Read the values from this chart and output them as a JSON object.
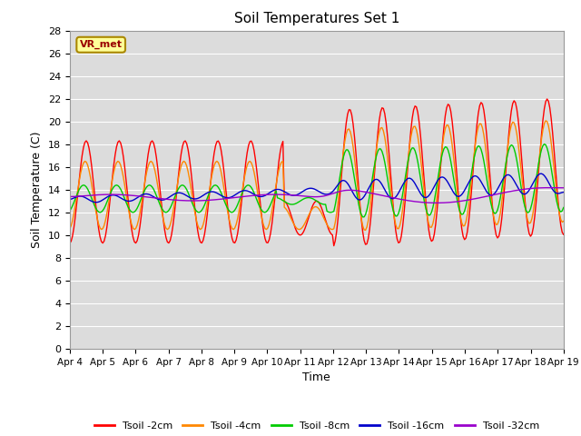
{
  "title": "Soil Temperatures Set 1",
  "xlabel": "Time",
  "ylabel": "Soil Temperature (C)",
  "x_tick_labels": [
    "Apr 4",
    "Apr 5",
    "Apr 6",
    "Apr 7",
    "Apr 8",
    "Apr 9",
    "Apr 10",
    "Apr 11",
    "Apr 12",
    "Apr 13",
    "Apr 14",
    "Apr 15",
    "Apr 16",
    "Apr 17",
    "Apr 18",
    "Apr 19"
  ],
  "ylim": [
    0,
    28
  ],
  "yticks": [
    0,
    2,
    4,
    6,
    8,
    10,
    12,
    14,
    16,
    18,
    20,
    22,
    24,
    26,
    28
  ],
  "colors": {
    "Tsoil -2cm": "#FF0000",
    "Tsoil -4cm": "#FF8800",
    "Tsoil -8cm": "#00CC00",
    "Tsoil -16cm": "#0000CC",
    "Tsoil -32cm": "#9900CC"
  },
  "legend_label": "VR_met",
  "bg_color": "#DCDCDC",
  "annotation_box_color": "#FFFF99",
  "annotation_text_color": "#990000"
}
